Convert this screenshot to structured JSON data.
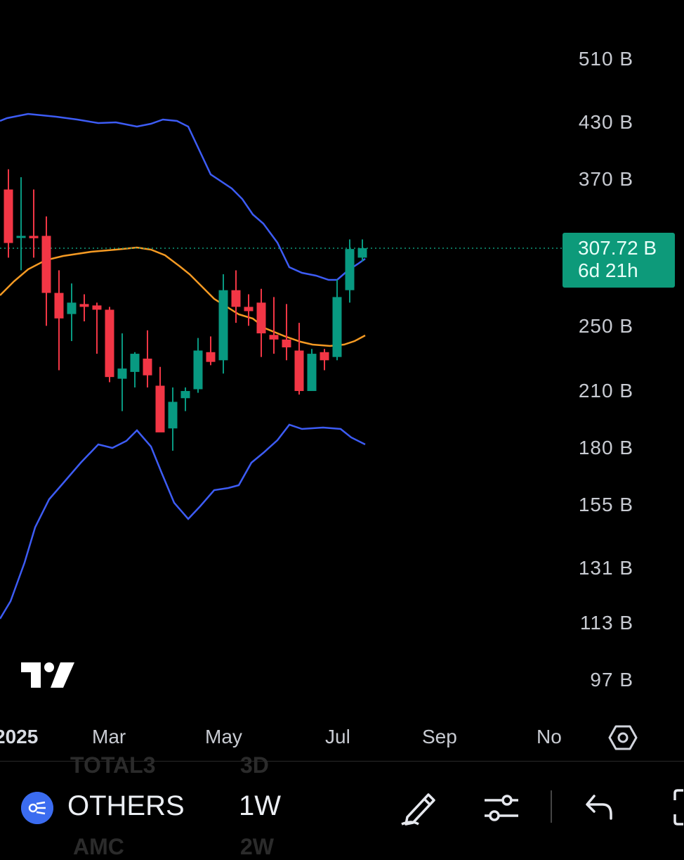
{
  "chart_data": {
    "type": "candlestick",
    "price_scale": "log",
    "y_ticks": [
      "510 B",
      "430 B",
      "370 B",
      "250 B",
      "210 B",
      "180 B",
      "155 B",
      "131 B",
      "113 B",
      "97 B"
    ],
    "x_ticks": [
      "2025",
      "Mar",
      "May",
      "Jul",
      "Sep",
      "No"
    ],
    "last_price_label": "307.72 B",
    "countdown_label": "6d 21h",
    "colors": {
      "up": "#089981",
      "down": "#f23645",
      "bands": "#3d5cf5",
      "basis": "#f59a23",
      "last_line": "#0d9a7a"
    },
    "indicator": "Bollinger Bands",
    "candles": [
      {
        "o": 360,
        "h": 380,
        "l": 300,
        "c": 312
      },
      {
        "o": 318,
        "h": 372,
        "l": 290,
        "c": 318
      },
      {
        "o": 318,
        "h": 360,
        "l": 300,
        "c": 316
      },
      {
        "o": 318,
        "h": 335,
        "l": 250,
        "c": 273
      },
      {
        "o": 273,
        "h": 290,
        "l": 222,
        "c": 255
      },
      {
        "o": 258,
        "h": 280,
        "l": 240,
        "c": 266
      },
      {
        "o": 265,
        "h": 272,
        "l": 253,
        "c": 263
      },
      {
        "o": 264,
        "h": 266,
        "l": 232,
        "c": 261
      },
      {
        "o": 261,
        "h": 263,
        "l": 215,
        "c": 218
      },
      {
        "o": 217,
        "h": 245,
        "l": 199,
        "c": 223
      },
      {
        "o": 221,
        "h": 233,
        "l": 212,
        "c": 232
      },
      {
        "o": 229,
        "h": 247,
        "l": 212,
        "c": 219
      },
      {
        "o": 213,
        "h": 224,
        "l": 189,
        "c": 188
      },
      {
        "o": 190,
        "h": 212,
        "l": 179,
        "c": 204
      },
      {
        "o": 206,
        "h": 212,
        "l": 199,
        "c": 210
      },
      {
        "o": 211,
        "h": 242,
        "l": 209,
        "c": 234
      },
      {
        "o": 233,
        "h": 243,
        "l": 225,
        "c": 227
      },
      {
        "o": 228,
        "h": 287,
        "l": 220,
        "c": 275
      },
      {
        "o": 275,
        "h": 290,
        "l": 252,
        "c": 263
      },
      {
        "o": 263,
        "h": 272,
        "l": 250,
        "c": 260
      },
      {
        "o": 266,
        "h": 276,
        "l": 230,
        "c": 245
      },
      {
        "o": 244,
        "h": 270,
        "l": 232,
        "c": 241
      },
      {
        "o": 241,
        "h": 265,
        "l": 228,
        "c": 236
      },
      {
        "o": 234,
        "h": 252,
        "l": 208,
        "c": 210
      },
      {
        "o": 210,
        "h": 235,
        "l": 212,
        "c": 232
      },
      {
        "o": 233,
        "h": 235,
        "l": 222,
        "c": 228
      },
      {
        "o": 230,
        "h": 283,
        "l": 228,
        "c": 270
      },
      {
        "o": 275,
        "h": 315,
        "l": 266,
        "c": 307
      },
      {
        "o": 300,
        "h": 315,
        "l": 297,
        "c": 307.72
      }
    ]
  },
  "toolbar": {
    "symbol": "OTHERS",
    "timeframe": "1W",
    "ghost_symbol": "TOTAL3",
    "ghost_tf": "3D",
    "ghost_symbol2": "AMC",
    "ghost_tf2": "2W"
  },
  "icons": {
    "settings": "hexagon-gear-icon",
    "logo": "tradingview-logo",
    "draw": "pencil-icon",
    "indicators": "sliders-icon",
    "undo": "undo-icon",
    "fullscreen": "fullscreen-icon",
    "symbol": "symbol-logo-icon"
  }
}
